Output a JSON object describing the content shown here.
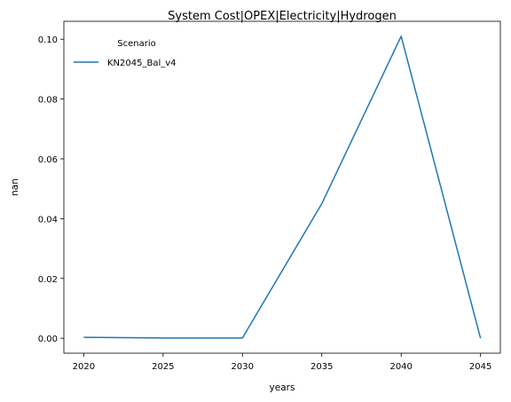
{
  "chart_data": {
    "type": "line",
    "title": "System Cost|OPEX|Electricity|Hydrogen",
    "xlabel": "years",
    "ylabel": "nan",
    "x": [
      2020,
      2025,
      2030,
      2035,
      2040,
      2045
    ],
    "xlim": [
      2018.75,
      2046.25
    ],
    "ylim": [
      -0.005,
      0.106
    ],
    "xticks": [
      2020,
      2025,
      2030,
      2035,
      2040,
      2045
    ],
    "yticks": [
      0.0,
      0.02,
      0.04,
      0.06,
      0.08,
      0.1
    ],
    "ytick_labels": [
      "0.00",
      "0.02",
      "0.04",
      "0.06",
      "0.08",
      "0.10"
    ],
    "grid": false,
    "legend": {
      "title": "Scenario",
      "placement": "top-left"
    },
    "series": [
      {
        "name": "KN2045_Bal_v4",
        "color": "#1f77b4",
        "values": [
          0.0003,
          0.0001,
          0.0001,
          0.045,
          0.101,
          0.0
        ]
      }
    ]
  }
}
